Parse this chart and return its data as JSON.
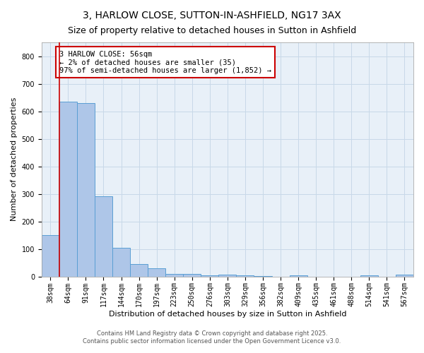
{
  "title": "3, HARLOW CLOSE, SUTTON-IN-ASHFIELD, NG17 3AX",
  "subtitle": "Size of property relative to detached houses in Sutton in Ashfield",
  "xlabel": "Distribution of detached houses by size in Sutton in Ashfield",
  "ylabel": "Number of detached properties",
  "categories": [
    "38sqm",
    "64sqm",
    "91sqm",
    "117sqm",
    "144sqm",
    "170sqm",
    "197sqm",
    "223sqm",
    "250sqm",
    "276sqm",
    "303sqm",
    "329sqm",
    "356sqm",
    "382sqm",
    "409sqm",
    "435sqm",
    "461sqm",
    "488sqm",
    "514sqm",
    "541sqm",
    "567sqm"
  ],
  "values": [
    150,
    635,
    630,
    290,
    105,
    45,
    30,
    10,
    10,
    5,
    7,
    5,
    1,
    0,
    5,
    0,
    0,
    0,
    5,
    0,
    7
  ],
  "bar_color": "#aec6e8",
  "bar_edge_color": "#5a9fd4",
  "vline_color": "#cc0000",
  "annotation_text": "3 HARLOW CLOSE: 56sqm\n← 2% of detached houses are smaller (35)\n97% of semi-detached houses are larger (1,852) →",
  "ylim": [
    0,
    850
  ],
  "yticks": [
    0,
    100,
    200,
    300,
    400,
    500,
    600,
    700,
    800
  ],
  "footnote1": "Contains HM Land Registry data © Crown copyright and database right 2025.",
  "footnote2": "Contains public sector information licensed under the Open Government Licence v3.0.",
  "background_color": "#ffffff",
  "plot_bg_color": "#e8f0f8",
  "grid_color": "#c8d8e8",
  "title_fontsize": 10,
  "subtitle_fontsize": 9,
  "axis_label_fontsize": 8,
  "tick_fontsize": 7,
  "annotation_fontsize": 7.5,
  "footnote_fontsize": 6
}
